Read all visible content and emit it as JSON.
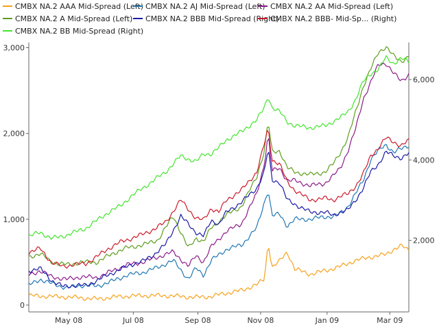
{
  "chart_data": {
    "type": "line",
    "title": "",
    "legend_placement": "top",
    "grid": false,
    "x_tick_labels": [
      "May 08",
      "Jul 08",
      "Sep 08",
      "Nov 08",
      "Jan 09",
      "Mar 09"
    ],
    "y_left": {
      "ticks": [
        "0",
        "1,000",
        "2,000",
        "3,000"
      ],
      "range": [
        -80,
        3060
      ]
    },
    "y_right": {
      "ticks": [
        "2,000",
        "4,000",
        "6,000"
      ],
      "range": [
        220,
        6920
      ]
    },
    "x_range": [
      0,
      100
    ],
    "series": [
      {
        "name": "CMBX NA.2 AAA Mid-Spread (Left)",
        "axis": "left",
        "color": "#f7a11a",
        "x": [
          0,
          6,
          12,
          18,
          24,
          30,
          36,
          40,
          44,
          48,
          52,
          56,
          60,
          62,
          63,
          64,
          66,
          68,
          70,
          74,
          78,
          82,
          86,
          90,
          94,
          96,
          98,
          100
        ],
        "y": [
          110,
          100,
          90,
          70,
          100,
          110,
          110,
          100,
          90,
          100,
          140,
          170,
          240,
          300,
          740,
          440,
          510,
          620,
          420,
          360,
          400,
          450,
          520,
          560,
          590,
          650,
          690,
          640
        ]
      },
      {
        "name": "CMBX NA.2 AJ Mid-Spread (Left)",
        "axis": "left",
        "color": "#1f77b4",
        "x": [
          0,
          3,
          6,
          10,
          14,
          18,
          22,
          26,
          30,
          34,
          38,
          42,
          44,
          46,
          48,
          52,
          56,
          60,
          62,
          63,
          64,
          66,
          68,
          70,
          74,
          78,
          80,
          82,
          84,
          86,
          88,
          90,
          92,
          94,
          96,
          98,
          100
        ],
        "y": [
          230,
          300,
          250,
          200,
          230,
          220,
          280,
          350,
          380,
          440,
          520,
          300,
          430,
          350,
          520,
          650,
          700,
          900,
          1200,
          1350,
          1040,
          1060,
          920,
          1000,
          1000,
          1030,
          1030,
          1070,
          1150,
          1300,
          1450,
          1700,
          1800,
          1870,
          1780,
          1820,
          1860
        ]
      },
      {
        "name": "CMBX NA.2 AA Mid-Spread (Left)",
        "axis": "left",
        "color": "#8b1a89",
        "x": [
          0,
          3,
          6,
          10,
          14,
          18,
          22,
          26,
          30,
          34,
          38,
          42,
          44,
          46,
          48,
          52,
          56,
          60,
          62,
          63,
          64,
          66,
          68,
          70,
          74,
          78,
          80,
          82,
          84,
          86,
          88,
          90,
          92,
          94,
          96,
          98,
          100
        ],
        "y": [
          350,
          400,
          330,
          300,
          330,
          320,
          400,
          470,
          500,
          560,
          620,
          450,
          580,
          500,
          680,
          860,
          950,
          1300,
          1650,
          2000,
          1560,
          1600,
          1450,
          1450,
          1390,
          1420,
          1500,
          1600,
          1800,
          2050,
          2400,
          2600,
          2800,
          2820,
          2700,
          2610,
          2690
        ]
      },
      {
        "name": "CMBX NA.2 A Mid-Spread (Left)",
        "axis": "left",
        "color": "#5c9e1b",
        "x": [
          0,
          3,
          6,
          10,
          14,
          18,
          22,
          26,
          30,
          34,
          38,
          42,
          44,
          46,
          48,
          52,
          56,
          60,
          62,
          63,
          64,
          66,
          68,
          70,
          74,
          78,
          80,
          82,
          84,
          86,
          88,
          90,
          92,
          94,
          96,
          98,
          100
        ],
        "y": [
          560,
          600,
          500,
          470,
          500,
          500,
          600,
          670,
          700,
          760,
          1040,
          660,
          780,
          740,
          900,
          1050,
          1150,
          1500,
          1800,
          2150,
          1780,
          1800,
          1600,
          1550,
          1520,
          1550,
          1640,
          1780,
          1950,
          2250,
          2550,
          2750,
          2950,
          3010,
          2900,
          2840,
          2900
        ]
      },
      {
        "name": "CMBX NA.2 BBB Mid-Spread (Right)",
        "axis": "right",
        "color": "#1a1aa6",
        "x": [
          0,
          3,
          6,
          9,
          12,
          15,
          18,
          21,
          24,
          27,
          30,
          33,
          36,
          40,
          44,
          46,
          48,
          50,
          52,
          56,
          60,
          62,
          63,
          64,
          66,
          68,
          70,
          74,
          78,
          80,
          82,
          84,
          86,
          88,
          90,
          92,
          94,
          96,
          98,
          100
        ],
        "y": [
          1250,
          1300,
          1000,
          850,
          880,
          880,
          1000,
          1150,
          1270,
          1400,
          1480,
          1650,
          1900,
          2600,
          2200,
          2100,
          2500,
          2400,
          2700,
          2950,
          3300,
          3700,
          4300,
          3500,
          3450,
          3000,
          2900,
          2700,
          2700,
          2620,
          2700,
          2750,
          3000,
          3300,
          3700,
          3900,
          4200,
          4100,
          4050,
          4160
        ]
      },
      {
        "name": "CMBX NA.2 BBB- Mid-Sp... (Right)",
        "axis": "right",
        "color": "#cc1a2a",
        "x": [
          0,
          3,
          6,
          9,
          12,
          15,
          18,
          21,
          24,
          27,
          30,
          33,
          36,
          40,
          44,
          46,
          48,
          50,
          52,
          56,
          60,
          62,
          63,
          64,
          66,
          68,
          70,
          74,
          78,
          80,
          82,
          84,
          86,
          88,
          90,
          92,
          94,
          96,
          98,
          100
        ],
        "y": [
          1700,
          1800,
          1450,
          1350,
          1400,
          1420,
          1600,
          1800,
          1950,
          2050,
          2150,
          2280,
          2450,
          3000,
          2550,
          2500,
          2800,
          2700,
          3000,
          3250,
          3700,
          4400,
          4800,
          4000,
          3900,
          3450,
          3250,
          3000,
          3050,
          3000,
          3100,
          3150,
          3350,
          3650,
          4100,
          4300,
          4550,
          4450,
          4350,
          4480
        ]
      },
      {
        "name": "CMBX NA.2 BB Mid-Spread (Right)",
        "axis": "right",
        "color": "#41e62a",
        "x": [
          0,
          3,
          6,
          9,
          12,
          15,
          18,
          21,
          24,
          27,
          30,
          33,
          36,
          40,
          44,
          46,
          48,
          50,
          52,
          56,
          60,
          62,
          63,
          64,
          66,
          68,
          70,
          74,
          78,
          80,
          82,
          84,
          86,
          88,
          90,
          92,
          94,
          96,
          98,
          100
        ],
        "y": [
          2100,
          2200,
          2050,
          2100,
          2200,
          2300,
          2500,
          2700,
          2850,
          3100,
          3300,
          3500,
          3700,
          4100,
          3950,
          4150,
          4150,
          4300,
          4500,
          4700,
          5000,
          5300,
          5600,
          5300,
          5200,
          4950,
          4850,
          4800,
          4850,
          4950,
          5050,
          5200,
          5500,
          5950,
          6150,
          6250,
          6550,
          6400,
          6520,
          6450
        ]
      }
    ]
  }
}
